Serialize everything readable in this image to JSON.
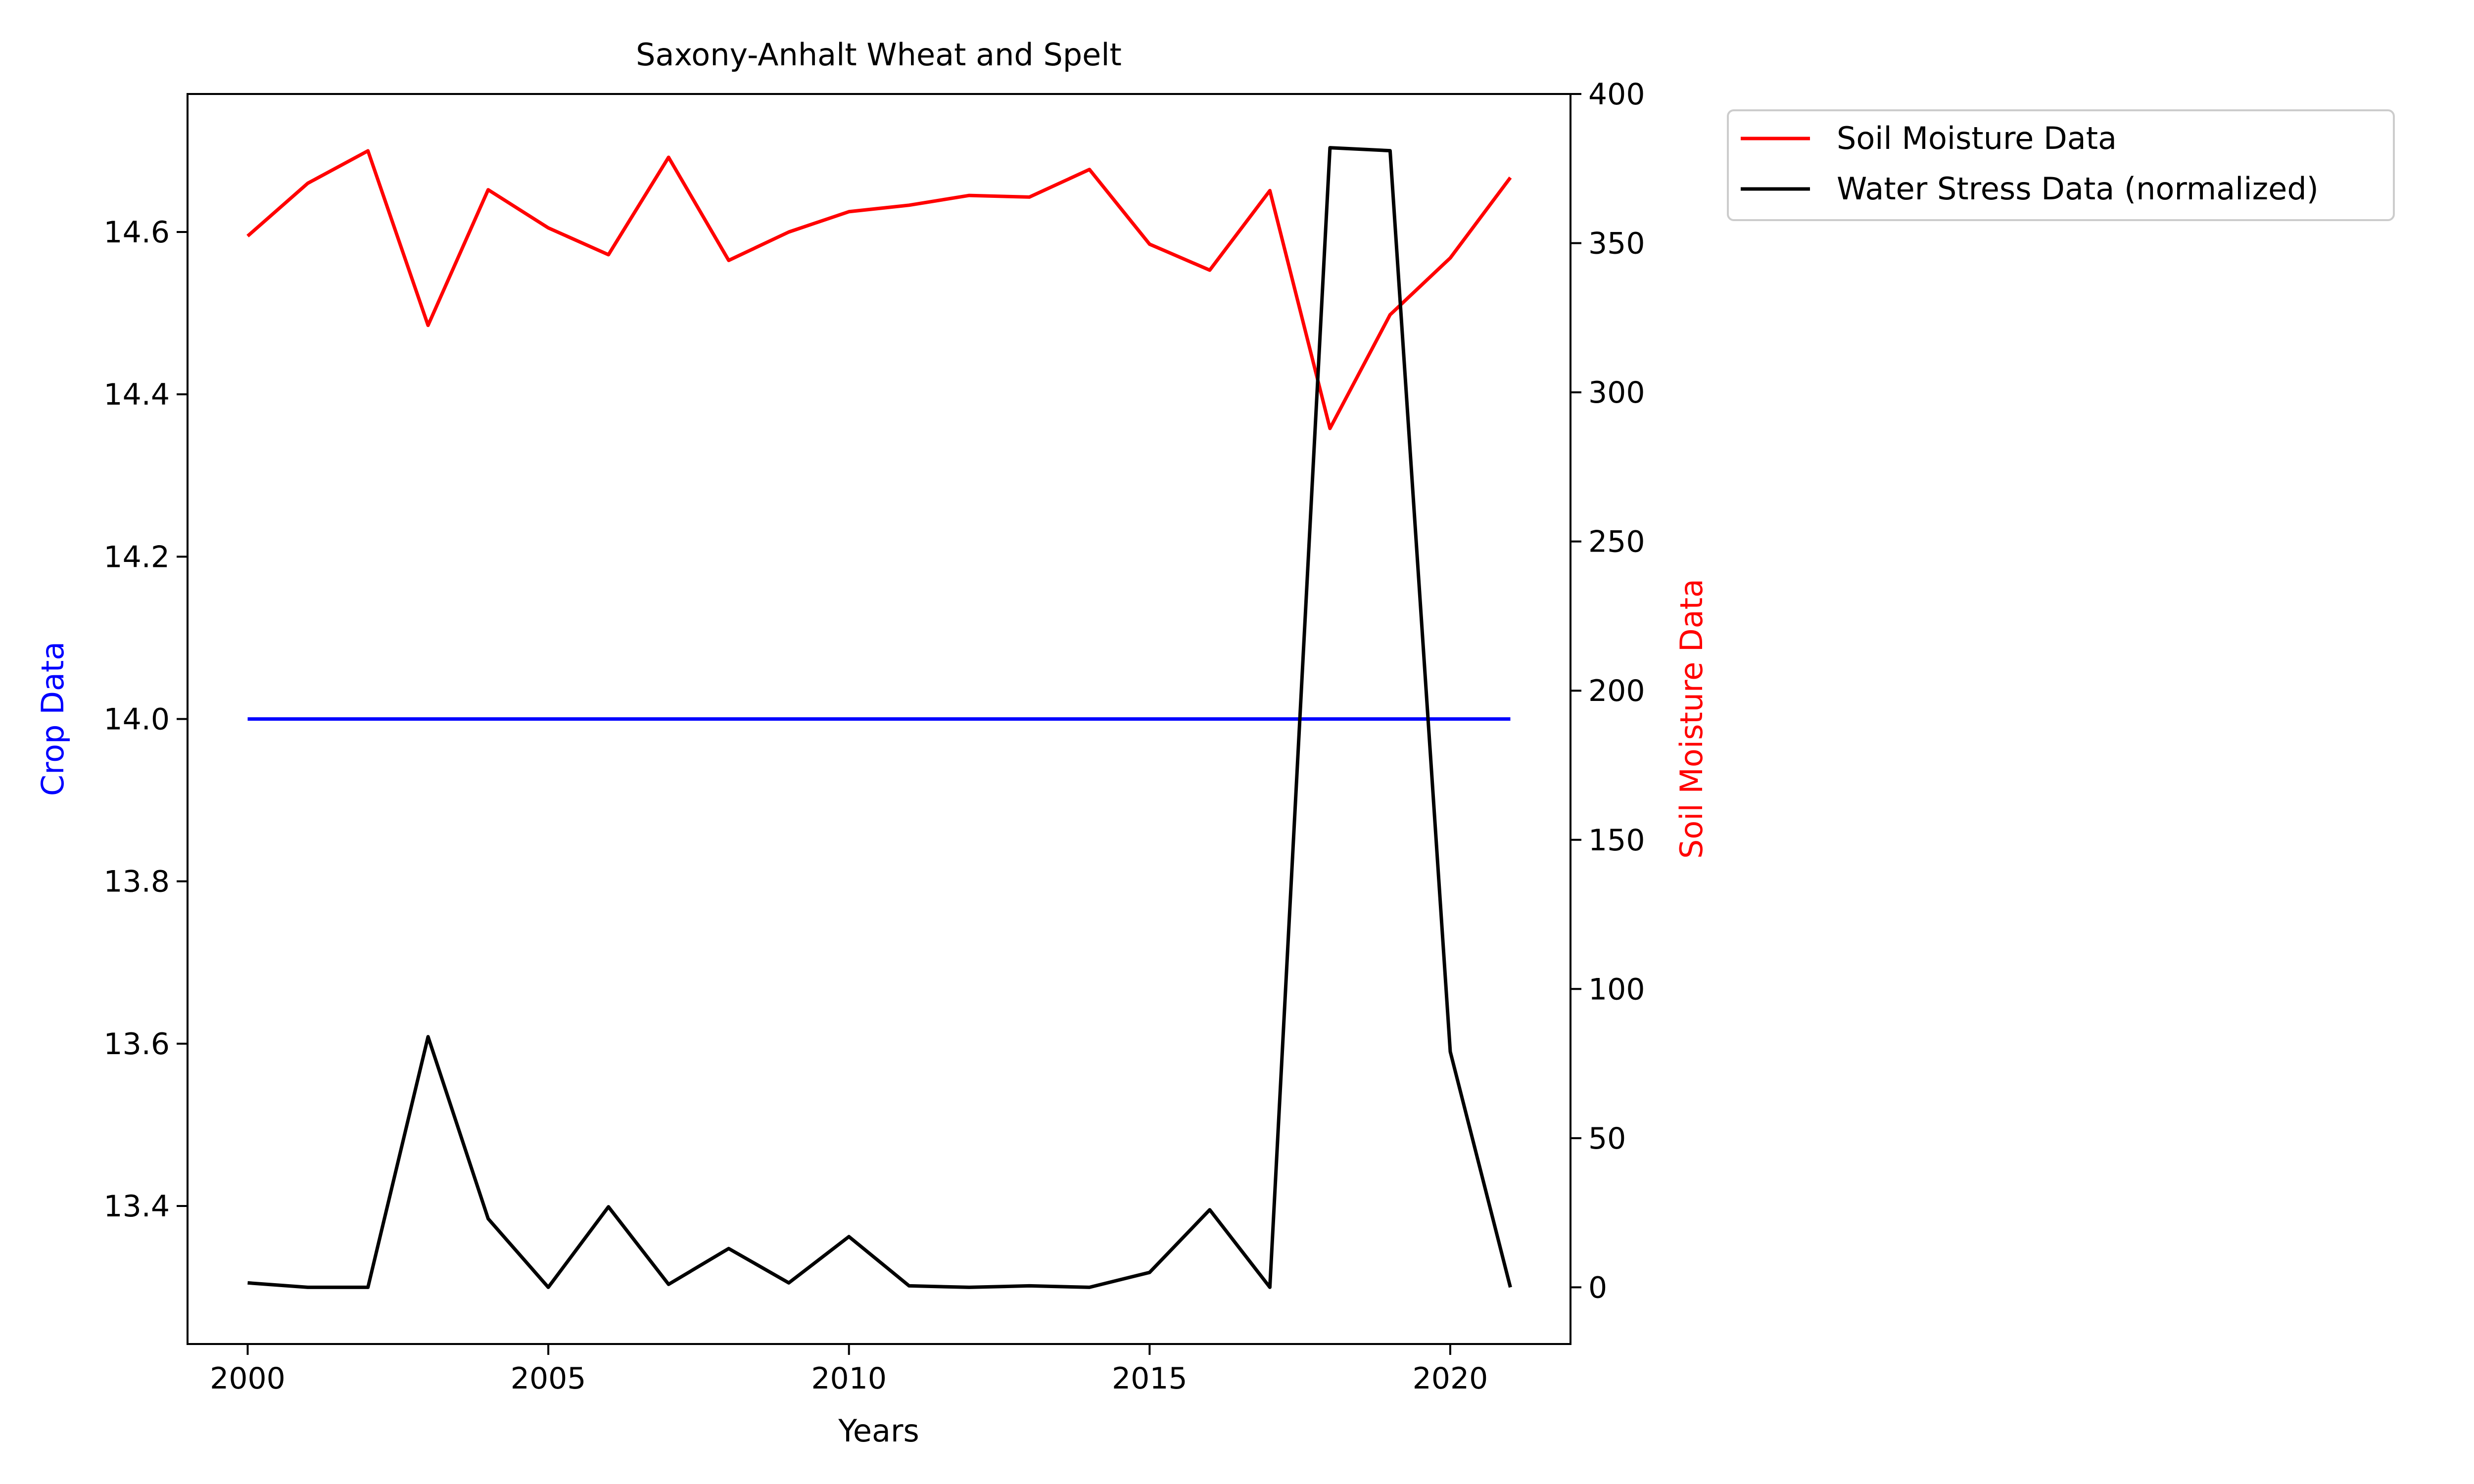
{
  "chart_data": {
    "type": "line",
    "title": "Saxony-Anhalt Wheat and Spelt",
    "xlabel": "Years",
    "ylabel_left": "Crop Data",
    "ylabel_right": "Soil Moisture Data",
    "x": [
      2000,
      2001,
      2002,
      2003,
      2004,
      2005,
      2006,
      2007,
      2008,
      2009,
      2010,
      2011,
      2012,
      2013,
      2014,
      2015,
      2016,
      2017,
      2018,
      2019,
      2020,
      2021
    ],
    "xlim": [
      1999,
      2022
    ],
    "xticks": [
      "2000",
      "2005",
      "2010",
      "2015",
      "2020"
    ],
    "left_axis": {
      "ylim": [
        13.23,
        14.77
      ],
      "ticks": [
        "13.4",
        "13.6",
        "13.8",
        "14.0",
        "14.2",
        "14.4",
        "14.6"
      ],
      "tick_values": [
        13.4,
        13.6,
        13.8,
        14.0,
        14.2,
        14.4,
        14.6
      ],
      "label_color": "#0000ff"
    },
    "right_axis": {
      "ylim": [
        -19,
        400
      ],
      "ticks": [
        "0",
        "50",
        "100",
        "150",
        "200",
        "250",
        "300",
        "350",
        "400"
      ],
      "tick_values": [
        0,
        50,
        100,
        150,
        200,
        250,
        300,
        350,
        400
      ],
      "label_color": "#ff0000"
    },
    "series": [
      {
        "axis": "left",
        "color": "#0000ff",
        "values": [
          14.0,
          14.0,
          14.0,
          14.0,
          14.0,
          14.0,
          14.0,
          14.0,
          14.0,
          14.0,
          14.0,
          14.0,
          14.0,
          14.0,
          14.0,
          14.0,
          14.0,
          14.0,
          14.0,
          14.0,
          14.0,
          14.0
        ]
      },
      {
        "name": "Soil Moisture Data",
        "axis": "left",
        "color": "#ff0000",
        "values": [
          14.595,
          14.66,
          14.7,
          14.485,
          14.652,
          14.605,
          14.572,
          14.692,
          14.565,
          14.6,
          14.625,
          14.633,
          14.645,
          14.643,
          14.677,
          14.585,
          14.553,
          14.651,
          14.358,
          14.498,
          14.568,
          14.667
        ]
      },
      {
        "name": "Water Stress Data (normalized)",
        "axis": "right",
        "color": "#000000",
        "values": [
          1.5,
          0,
          0,
          84,
          23,
          0,
          27,
          1,
          13,
          1.5,
          17,
          0.5,
          0,
          0.5,
          0,
          5,
          26,
          0,
          382,
          381,
          79,
          0
        ]
      }
    ],
    "legend": {
      "placement": "outside-top-right",
      "entries": [
        "Soil Moisture Data",
        "Water Stress Data (normalized)"
      ]
    },
    "grid": false
  }
}
